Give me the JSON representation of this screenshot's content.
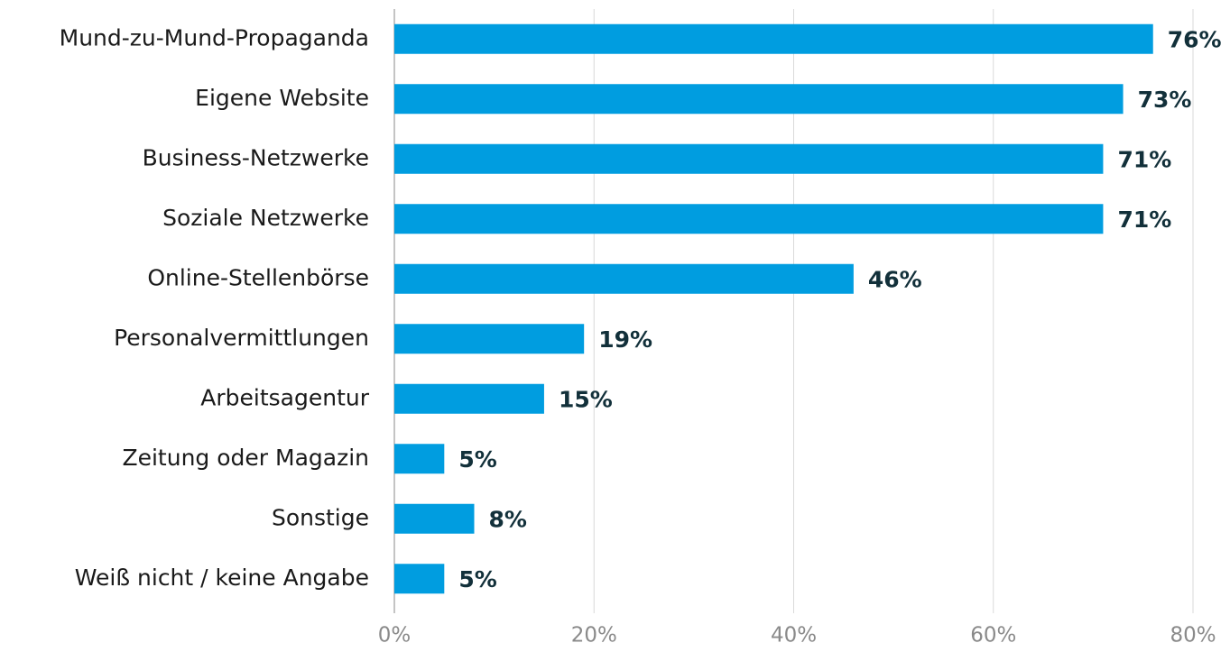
{
  "chart_data": {
    "type": "bar",
    "orientation": "horizontal",
    "categories": [
      "Mund-zu-Mund-Propaganda",
      "Eigene Website",
      "Business-Netzwerke",
      "Soziale Netzwerke",
      "Online-Stellenbörse",
      "Personalvermittlungen",
      "Arbeitsagentur",
      "Zeitung oder Magazin",
      "Sonstige",
      "Weiß nicht / keine Angabe"
    ],
    "values": [
      76,
      73,
      71,
      71,
      46,
      19,
      15,
      5,
      8,
      5
    ],
    "value_labels": [
      "76%",
      "73%",
      "71%",
      "71%",
      "46%",
      "19%",
      "15%",
      "5%",
      "8%",
      "5%"
    ],
    "color": "#009de0",
    "xlim": [
      0,
      80
    ],
    "xticks": [
      {
        "value": 0,
        "label": "0%"
      },
      {
        "value": 20,
        "label": "20%"
      },
      {
        "value": 40,
        "label": "40%"
      },
      {
        "value": 60,
        "label": "60%"
      },
      {
        "value": 80,
        "label": "80%"
      }
    ],
    "grid": true
  }
}
